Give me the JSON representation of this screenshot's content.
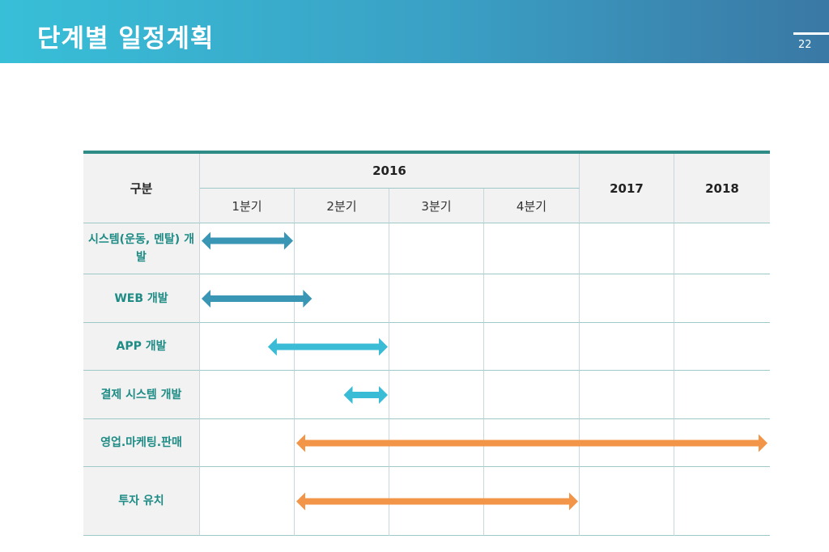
{
  "header": {
    "title": "단계별 일정계획",
    "page_number": "22"
  },
  "table": {
    "col_header": "구분",
    "year_2016": "2016",
    "year_2017": "2017",
    "year_2018": "2018",
    "quarters": [
      "1분기",
      "2분기",
      "3분기",
      "4분기"
    ],
    "rows": [
      {
        "label": "시스템(운동, 멘탈) 개발",
        "start_q": 0,
        "end_q": 1,
        "color": "#3a96b5"
      },
      {
        "label": "WEB 개발",
        "start_q": 0,
        "end_q": 1.2,
        "color": "#3a96b5"
      },
      {
        "label": "APP 개발",
        "start_q": 0.7,
        "end_q": 2,
        "color": "#3bbcd6"
      },
      {
        "label": "결제 시스템 개발",
        "start_q": 1.5,
        "end_q": 2,
        "color": "#3bbcd6"
      },
      {
        "label": "영업.마케팅.판매",
        "start_q": 1,
        "end_q": 6,
        "color": "#f39549"
      },
      {
        "label": "투자 유치",
        "start_q": 1,
        "end_q": 4,
        "color": "#f39549"
      }
    ]
  },
  "colors": {
    "banner_start": "#38bfd8",
    "banner_end": "#3a78a5",
    "label_text": "#1e8b85",
    "table_top_rule": "#2e8c87"
  }
}
